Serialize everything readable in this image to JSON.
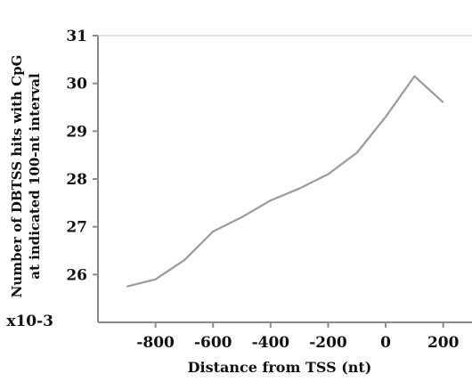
{
  "chart_data": {
    "type": "line",
    "title": "",
    "xlabel": "Distance from TSS (nt)",
    "ylabel_lines": [
      "Number of DBTSS hits with CpG",
      "at indicated 100-nt interval"
    ],
    "y_multiplier": "x10-3",
    "xlim": [
      -1000,
      300
    ],
    "ylim": [
      25,
      31
    ],
    "x_ticks": [
      -800,
      -600,
      -400,
      -200,
      0,
      200
    ],
    "x_tick_labels": [
      "-800",
      "-600",
      "-400",
      "-200",
      "0",
      "200"
    ],
    "y_ticks": [
      26,
      27,
      28,
      29,
      30,
      31
    ],
    "y_tick_labels": [
      "26",
      "27",
      "28",
      "29",
      "30",
      "31"
    ],
    "grid": false,
    "legend": "none",
    "line_color": "#9a9a9a",
    "axis_color": "#8a8a8a",
    "series": [
      {
        "x": [
          -900,
          -800,
          -700,
          -600,
          -500,
          -400,
          -300,
          -200,
          -100,
          0,
          100,
          200
        ],
        "y": [
          25.75,
          25.9,
          26.3,
          26.9,
          27.2,
          27.55,
          27.8,
          28.1,
          28.55,
          29.3,
          30.15,
          29.6
        ]
      }
    ]
  }
}
